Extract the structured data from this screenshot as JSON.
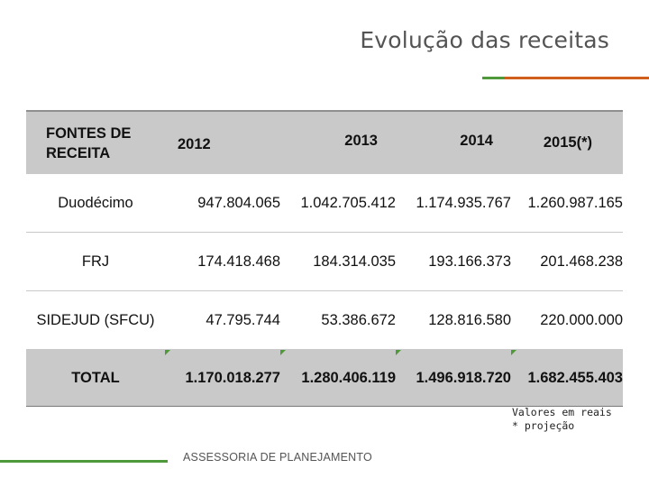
{
  "title": "Evolução das receitas",
  "colors": {
    "accent_green": "#4e9a3a",
    "accent_orange": "#d15f1c",
    "header_bg": "#c9c9c9"
  },
  "table": {
    "headers": [
      "FONTES DE RECEITA",
      "2012",
      "2013",
      "2014",
      "2015(*)"
    ],
    "rows": [
      {
        "label": "Duodécimo",
        "values": [
          "947.804.065",
          "1.042.705.412",
          "1.174.935.767",
          "1.260.987.165"
        ]
      },
      {
        "label": "FRJ",
        "values": [
          "174.418.468",
          "184.314.035",
          "193.166.373",
          "201.468.238"
        ]
      },
      {
        "label": "SIDEJUD (SFCU)",
        "values": [
          "47.795.744",
          "53.386.672",
          "128.816.580",
          "220.000.000"
        ]
      }
    ],
    "total": {
      "label": "TOTAL",
      "values": [
        "1.170.018.277",
        "1.280.406.119",
        "1.496.918.720",
        "1.682.455.403"
      ]
    }
  },
  "notes": [
    "Valores em reais",
    "* projeção"
  ],
  "footer": "ASSESSORIA DE PLANEJAMENTO"
}
